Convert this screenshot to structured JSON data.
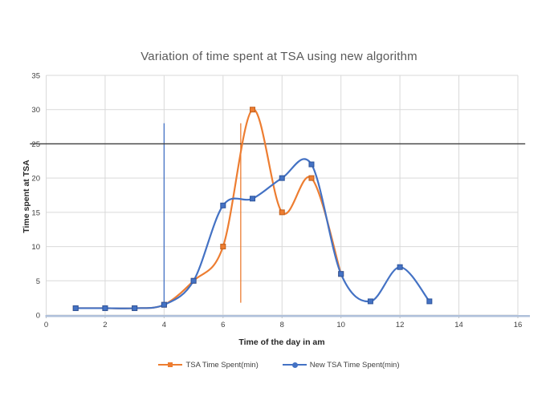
{
  "chart_data": {
    "type": "line",
    "title": "Variation of time spent at TSA using new algorithm",
    "xlabel": "Time of the day in am",
    "ylabel": "Time spent at TSA",
    "xlim": [
      0,
      16
    ],
    "ylim": [
      0,
      35
    ],
    "xticks": [
      0,
      2,
      4,
      6,
      8,
      10,
      12,
      14,
      16
    ],
    "yticks": [
      0,
      5,
      10,
      15,
      20,
      25,
      30,
      35
    ],
    "grid": true,
    "smooth_lines": true,
    "legend_position": "bottom",
    "series": [
      {
        "name": "TSA Time Spent(min)",
        "color": "#ED7D31",
        "edge": "#C05F1B",
        "marker": "square",
        "x": [
          1,
          2,
          3,
          4,
          5,
          6,
          7,
          8,
          9,
          10
        ],
        "values": [
          1,
          1,
          1,
          1.5,
          5,
          10,
          30,
          15,
          20,
          6
        ]
      },
      {
        "name": "New TSA Time Spent(min)",
        "color": "#4472C4",
        "edge": "#2E559C",
        "marker": "square",
        "x": [
          1,
          2,
          3,
          4,
          5,
          6,
          7,
          8,
          9,
          10,
          11,
          12,
          13
        ],
        "values": [
          1,
          1,
          1,
          1.5,
          5,
          16,
          17,
          20,
          22,
          6,
          2,
          7,
          2
        ]
      }
    ],
    "annotations": [
      {
        "type": "vline",
        "x": 4,
        "y1": 1.5,
        "y2": 28,
        "color": "#4472C4"
      },
      {
        "type": "vline",
        "x": 6.6,
        "y1": 1.8,
        "y2": 28,
        "color": "#ED7D31"
      },
      {
        "type": "hline",
        "y": 25,
        "x1": -0.55,
        "x2": 16.25,
        "color": "#3F3F3F"
      }
    ],
    "colors": {
      "gridline": "#D9D9D9",
      "axis_line": "#AFC0DA",
      "tick_mark": "#BFBFBF",
      "title": "#595959",
      "tick_label": "#404040",
      "axis_title": "#262626"
    }
  }
}
